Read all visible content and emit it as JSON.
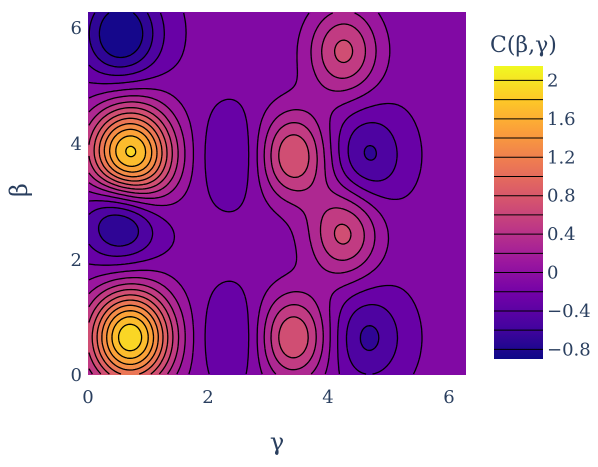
{
  "chart_data": {
    "type": "heatmap",
    "subtype": "contour",
    "colorscale": "Plasma",
    "x": {
      "label": "γ",
      "range": [
        0,
        6.283
      ],
      "ticks": [
        0,
        2,
        4,
        6
      ]
    },
    "y": {
      "label": "β",
      "range": [
        0,
        6.283
      ],
      "ticks": [
        0,
        2,
        4,
        6
      ]
    },
    "colorbar": {
      "title": "C(β,γ)",
      "range": [
        -0.9,
        2.15
      ],
      "ticks": [
        2,
        1.6,
        1.2,
        0.8,
        0.4,
        0,
        -0.4,
        -0.8
      ],
      "tick_labels": [
        "2",
        "1.6",
        "1.2",
        "0.8",
        "0.4",
        "0",
        "−0.4",
        "−0.8"
      ],
      "levels": [
        -0.8,
        -0.6,
        -0.4,
        -0.2,
        0,
        0.2,
        0.4,
        0.6,
        0.8,
        1.0,
        1.2,
        1.4,
        1.6,
        1.8,
        2.0
      ]
    },
    "features": [
      {
        "kind": "max",
        "x": 0.7,
        "y": 3.8,
        "value": 2.1
      },
      {
        "kind": "max",
        "x": 0.7,
        "y": 0.65,
        "value": 2.1
      },
      {
        "kind": "min",
        "x": 0.55,
        "y": 5.9,
        "value": -0.9
      },
      {
        "kind": "min",
        "x": 0.55,
        "y": 2.75,
        "value": -0.9
      },
      {
        "kind": "max",
        "x": 3.4,
        "y": 3.8,
        "value": 0.95
      },
      {
        "kind": "max",
        "x": 3.4,
        "y": 0.65,
        "value": 0.95
      },
      {
        "kind": "max",
        "x": 4.25,
        "y": 5.6,
        "value": 0.8
      },
      {
        "kind": "max",
        "x": 4.25,
        "y": 2.45,
        "value": 0.8
      },
      {
        "kind": "min",
        "x": 2.45,
        "y": 3.8,
        "value": -0.3
      },
      {
        "kind": "min",
        "x": 2.45,
        "y": 0.65,
        "value": -0.3
      },
      {
        "kind": "min",
        "x": 4.65,
        "y": 3.8,
        "value": -0.5
      },
      {
        "kind": "min",
        "x": 4.65,
        "y": 0.65,
        "value": -0.5
      }
    ]
  }
}
